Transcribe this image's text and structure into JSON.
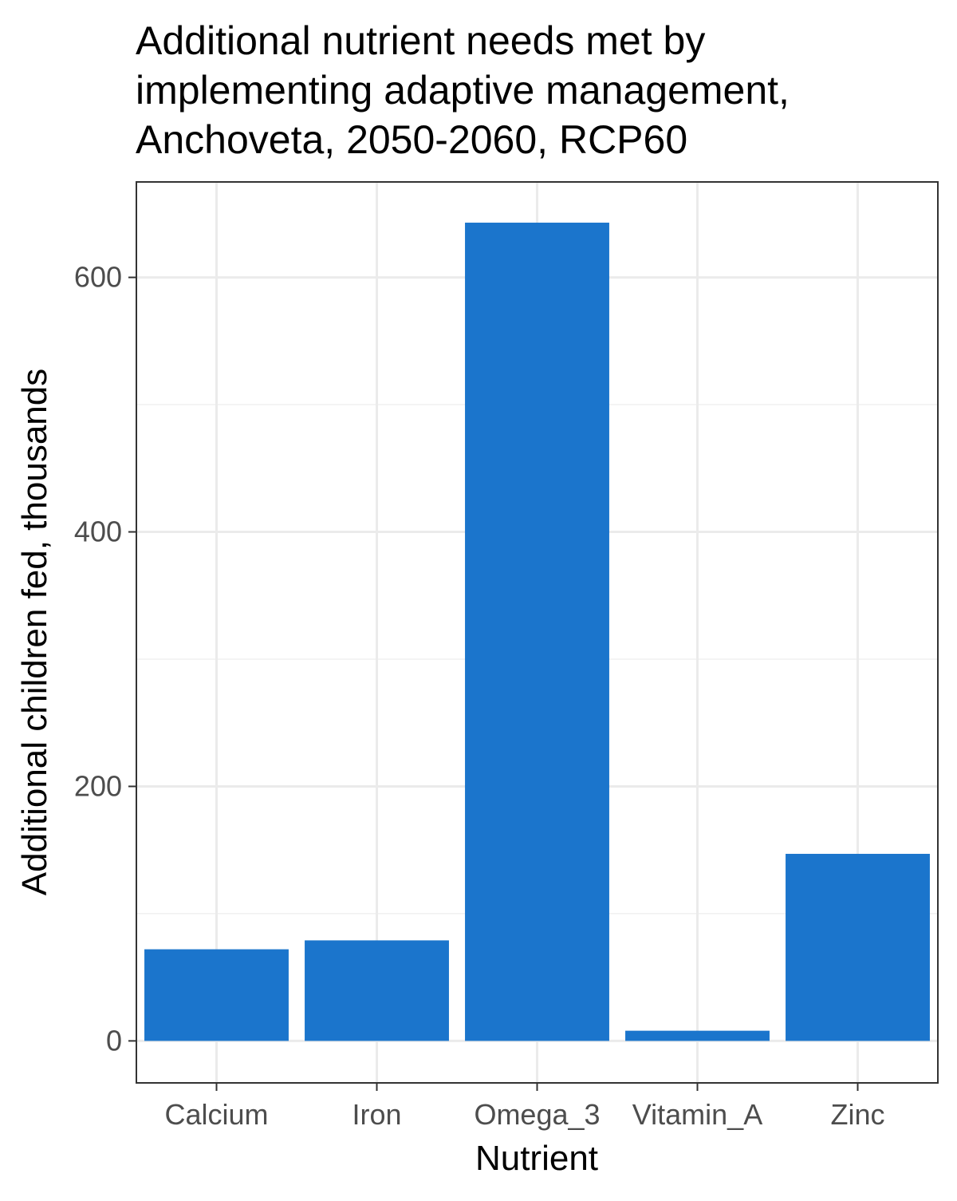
{
  "chart_data": {
    "type": "bar",
    "title_lines": [
      "Additional nutrient needs met by",
      "implementing adaptive management,",
      "Anchoveta, 2050-2060, RCP60"
    ],
    "xlabel": "Nutrient",
    "ylabel": "Additional children fed, thousands",
    "categories": [
      "Calcium",
      "Iron",
      "Omega_3",
      "Vitamin_A",
      "Zinc"
    ],
    "values": [
      72,
      79,
      643,
      8,
      147
    ],
    "ylim": [
      -33,
      675
    ],
    "yticks": [
      0,
      200,
      400,
      600
    ],
    "yticks_minor": [
      100,
      300,
      500
    ],
    "grid": true,
    "legend": "none",
    "bar_color": "#1b75cc"
  }
}
